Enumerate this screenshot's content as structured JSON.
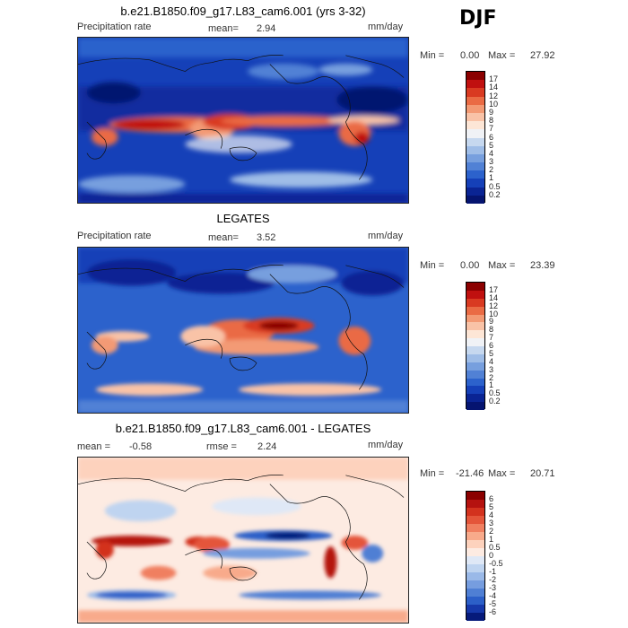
{
  "season": "DJF",
  "precip_scale": {
    "labels": [
      "17",
      "14",
      "12",
      "10",
      "9",
      "8",
      "7",
      "6",
      "5",
      "4",
      "3",
      "2",
      "1",
      "0.5",
      "0.2"
    ],
    "colors": [
      "#8b0000",
      "#c0100f",
      "#d93a21",
      "#ea6b44",
      "#f39a74",
      "#f9c3a7",
      "#fde6d6",
      "#f0f2f6",
      "#c6d8ef",
      "#9fbde7",
      "#779fde",
      "#5181d5",
      "#2c62cc",
      "#1540b8",
      "#0a2494",
      "#051470"
    ]
  },
  "diff_scale": {
    "labels": [
      "6",
      "5",
      "4",
      "3",
      "2",
      "1",
      "0.5",
      "0",
      "-0.5",
      "-1",
      "-2",
      "-3",
      "-4",
      "-5",
      "-6"
    ],
    "colors": [
      "#8b0000",
      "#b5120f",
      "#d3321e",
      "#e4553a",
      "#f07f60",
      "#f8aa8b",
      "#fdd2bd",
      "#fdebe2",
      "#dfe8f6",
      "#bfd4f0",
      "#9ab9e8",
      "#769ddf",
      "#4f7fd4",
      "#2c5fc8",
      "#1638aa",
      "#061a7a"
    ]
  },
  "panels": [
    {
      "title": "b.e21.B1850.f09_g17.L83_cam6.001 (yrs 3-32)",
      "left_label": "Precipitation rate",
      "mean_label": "mean=",
      "mean_value": "2.94",
      "units": "mm/day",
      "min_label": "Min =",
      "min_value": "0.00",
      "max_label": "Max =",
      "max_value": "27.92"
    },
    {
      "title": "LEGATES",
      "left_label": "Precipitation rate",
      "mean_label": "mean=",
      "mean_value": "3.52",
      "units": "mm/day",
      "min_label": "Min =",
      "min_value": "0.00",
      "max_label": "Max =",
      "max_value": "23.39"
    },
    {
      "title": "b.e21.B1850.f09_g17.L83_cam6.001 - LEGATES",
      "mean_label": "mean =",
      "mean_value": "-0.58",
      "rmse_label": "rmse =",
      "rmse_value": "2.24",
      "units": "mm/day",
      "min_label": "Min =",
      "min_value": "-21.46",
      "max_label": "Max =",
      "max_value": "20.71"
    }
  ],
  "chart_data": [
    {
      "type": "heatmap",
      "title": "b.e21.B1850.f09_g17.L83_cam6.001 (yrs 3-32)",
      "variable": "Precipitation rate",
      "units": "mm/day",
      "mean": 2.94,
      "min": 0.0,
      "max": 27.92,
      "contour_levels": [
        0.2,
        0.5,
        1,
        2,
        3,
        4,
        5,
        6,
        7,
        8,
        9,
        10,
        12,
        14,
        17
      ]
    },
    {
      "type": "heatmap",
      "title": "LEGATES",
      "variable": "Precipitation rate",
      "units": "mm/day",
      "mean": 3.52,
      "min": 0.0,
      "max": 23.39,
      "contour_levels": [
        0.2,
        0.5,
        1,
        2,
        3,
        4,
        5,
        6,
        7,
        8,
        9,
        10,
        12,
        14,
        17
      ]
    },
    {
      "type": "heatmap",
      "title": "b.e21.B1850.f09_g17.L83_cam6.001 - LEGATES",
      "units": "mm/day",
      "mean": -0.58,
      "rmse": 2.24,
      "min": -21.46,
      "max": 20.71,
      "contour_levels": [
        -6,
        -5,
        -4,
        -3,
        -2,
        -1,
        -0.5,
        0,
        0.5,
        1,
        2,
        3,
        4,
        5,
        6
      ]
    }
  ]
}
